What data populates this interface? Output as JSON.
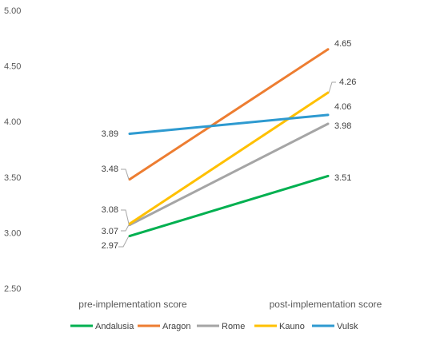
{
  "chart_data": {
    "type": "line",
    "categories": [
      "pre-implementation score",
      "post-implementation score"
    ],
    "series": [
      {
        "name": "Andalusia",
        "values": [
          2.97,
          3.51
        ],
        "color": "#00B050"
      },
      {
        "name": "Aragon",
        "values": [
          3.48,
          4.65
        ],
        "color": "#ED7D31"
      },
      {
        "name": "Rome",
        "values": [
          3.07,
          3.98
        ],
        "color": "#A5A5A5"
      },
      {
        "name": "Kauno",
        "values": [
          3.08,
          4.26
        ],
        "color": "#FFC000"
      },
      {
        "name": "Vulsk",
        "values": [
          3.89,
          4.06
        ],
        "color": "#2E9AD0"
      }
    ],
    "ylim": [
      2.5,
      5.0
    ],
    "yticks": [
      "2.50",
      "3.00",
      "3.50",
      "4.00",
      "4.50",
      "5.00"
    ],
    "data_labels": {
      "pre": [
        "2.97",
        "3.48",
        "3.07",
        "3.08",
        "3.89"
      ],
      "post": [
        "3.51",
        "4.65",
        "3.98",
        "4.26",
        "4.06"
      ]
    },
    "legend_position": "bottom",
    "grid": false,
    "title": "",
    "xlabel": "",
    "ylabel": ""
  }
}
